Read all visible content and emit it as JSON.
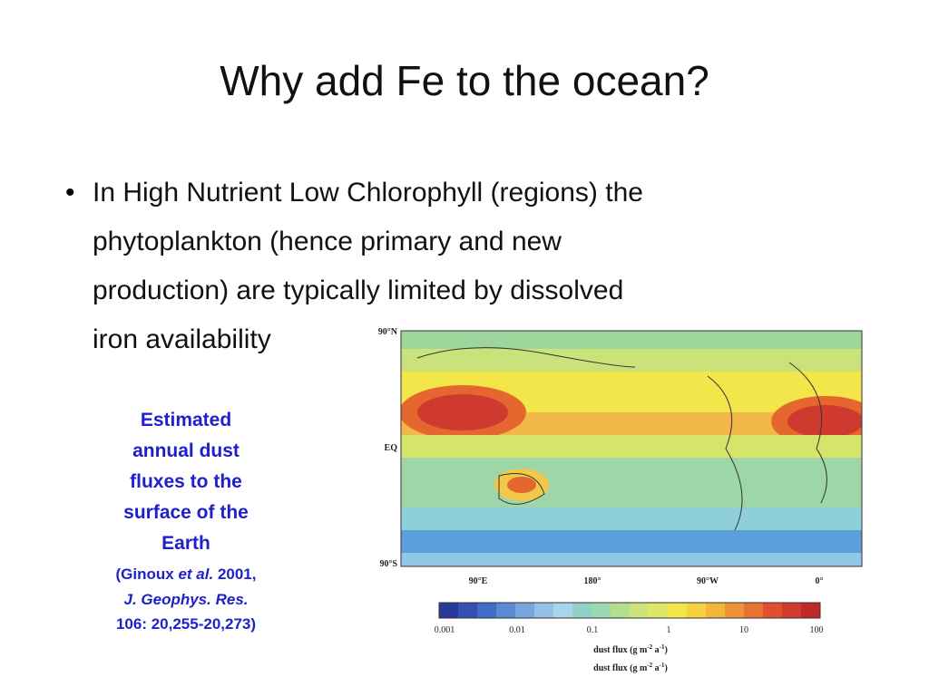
{
  "title": "Why add Fe to the ocean?",
  "bullet": {
    "lines": [
      "In High Nutrient Low Chlorophyll (regions) the",
      "phytoplankton (hence primary and new",
      "production) are typically limited by dissolved",
      "iron availability"
    ]
  },
  "caption": {
    "lines": [
      "Estimated",
      "annual dust",
      "fluxes to the",
      "surface of the",
      "Earth"
    ],
    "citation": [
      [
        "(Ginoux ",
        "et al.",
        " 2001,"
      ],
      [
        "J. Geophys. Res."
      ],
      [
        "106: 20,255-20,273)"
      ]
    ]
  },
  "map": {
    "lat_labels": [
      "90°N",
      "EQ",
      "90°S"
    ],
    "lon_labels": [
      "90°E",
      "180°",
      "90°W",
      "0°"
    ],
    "colorbar_labels": [
      "0.001",
      "0.01",
      "0.1",
      "1",
      "10",
      "100"
    ],
    "unit_label": [
      "dust flux (g m",
      "-2",
      " a",
      "-1",
      ")"
    ],
    "unit_label_2": [
      "dust flux (g m",
      "-2",
      " a",
      "-1",
      ")"
    ]
  }
}
